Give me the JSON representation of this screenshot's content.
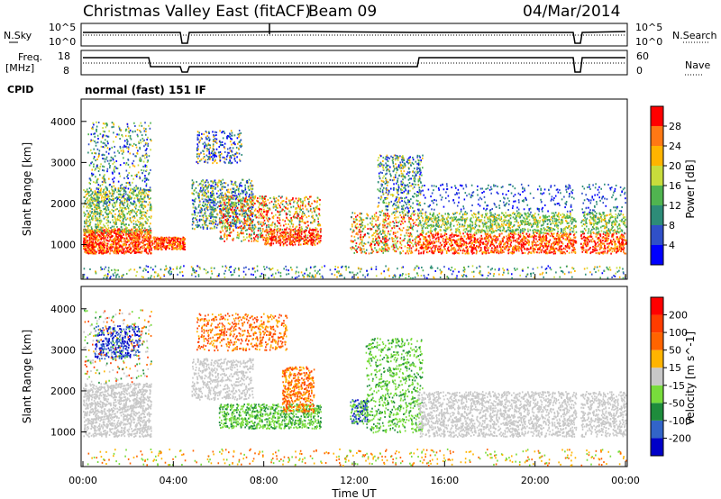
{
  "header": {
    "station": "Christmas Valley East (fitACF)",
    "beam": "Beam 09",
    "date": "04/Mar/2014"
  },
  "chart_data": [
    {
      "type": "line",
      "name": "nsky-nsearch-strip",
      "left_label": "N.Sky",
      "right_label": "N.Search",
      "left_ticks": [
        "10^5",
        "10^0"
      ],
      "right_ticks": [
        "10^5",
        "10^0"
      ]
    },
    {
      "type": "line",
      "name": "freq-nave-strip",
      "left_label": "Freq.",
      "left_unit": "[MHz]",
      "right_label": "Nave",
      "left_ticks": [
        "18",
        "8"
      ],
      "right_ticks": [
        "60",
        "0"
      ]
    },
    {
      "type": "table",
      "name": "cpid-strip",
      "label": "CPID",
      "mode_text": "normal (fast) 151 IF"
    },
    {
      "type": "heatmap",
      "name": "power-panel",
      "ylabel": "Slant Range [km]",
      "yticks": [
        "1000",
        "2000",
        "3000",
        "4000"
      ],
      "ylim": [
        200,
        4500
      ],
      "colorbar": {
        "label": "Power [dB]",
        "ticks": [
          "4",
          "8",
          "12",
          "16",
          "20",
          "24",
          "28"
        ],
        "range": [
          0,
          30
        ],
        "colors": [
          "#0000ff",
          "#3050c8",
          "#2d8c78",
          "#50b450",
          "#c8dc3c",
          "#ffb400",
          "#ff7814",
          "#ff0000"
        ]
      }
    },
    {
      "type": "heatmap",
      "name": "velocity-panel",
      "ylabel": "Slant Range [km]",
      "yticks": [
        "1000",
        "2000",
        "3000",
        "4000"
      ],
      "ylim": [
        200,
        4500
      ],
      "colorbar": {
        "label": "Velocity [m s^-1]",
        "ticks": [
          "200",
          "100",
          "50",
          "15",
          "-15",
          "-50",
          "-100",
          "-200"
        ],
        "colors": [
          "#0000c8",
          "#3264c8",
          "#1e8c3c",
          "#78dc3c",
          "#c8c8c8",
          "#ffb400",
          "#ff6400",
          "#ff3c00",
          "#ff0000"
        ]
      },
      "xticks": [
        "00:00",
        "04:00",
        "08:00",
        "12:00",
        "16:00",
        "20:00",
        "00:00"
      ],
      "xlabel": "Time UT",
      "xlim": [
        0,
        24
      ]
    }
  ]
}
